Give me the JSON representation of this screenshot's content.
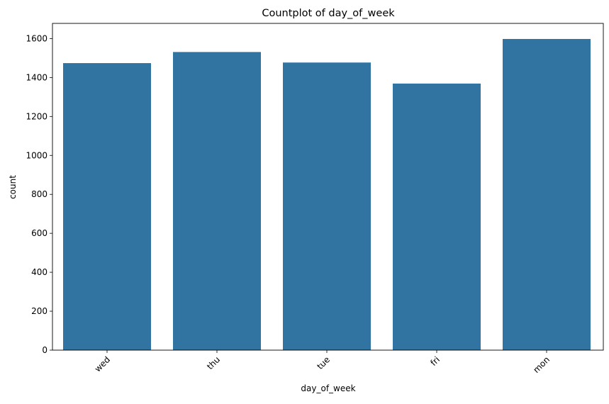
{
  "chart_data": {
    "type": "bar",
    "title": "Countplot of day_of_week",
    "xlabel": "day_of_week",
    "ylabel": "count",
    "categories": [
      "wed",
      "thu",
      "tue",
      "fri",
      "mon"
    ],
    "values": [
      1474,
      1531,
      1477,
      1369,
      1598
    ],
    "ylim": [
      0,
      1678
    ],
    "yticks": [
      "0",
      "200",
      "400",
      "600",
      "800",
      "1000",
      "1200",
      "1400",
      "1600"
    ],
    "grid": false,
    "legend": "none",
    "bar_color": "#3274a1",
    "xtick_rotation_deg": 45
  }
}
